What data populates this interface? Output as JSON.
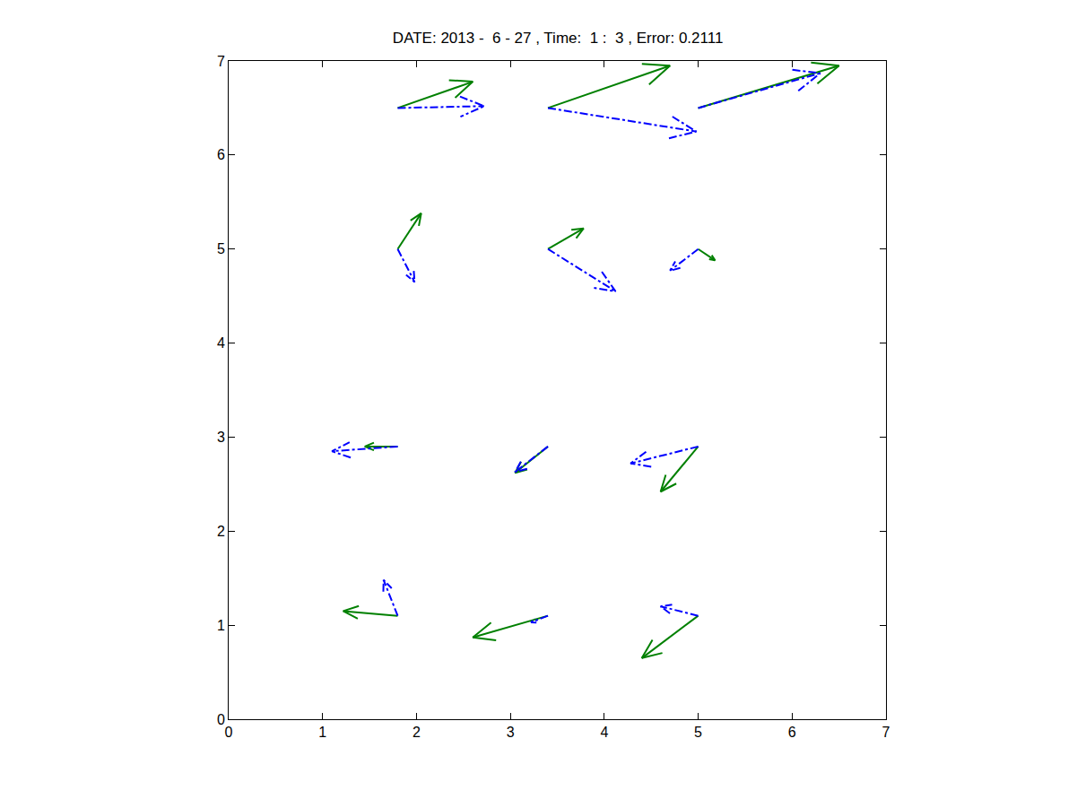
{
  "chart_data": {
    "type": "quiver",
    "title": "DATE: 2013 -  6 - 27 , Time:  1 :  3 , Error: 0.2111",
    "x": [
      1.8,
      3.4,
      5.0,
      1.8,
      3.4,
      5.0,
      1.8,
      3.4,
      5.0,
      1.8,
      3.4,
      5.0
    ],
    "y": [
      6.5,
      6.5,
      6.5,
      5.0,
      5.0,
      5.0,
      2.9,
      2.9,
      2.9,
      1.1,
      1.1,
      1.1
    ],
    "series": [
      {
        "color": "#008000",
        "line_style": "solid",
        "u": [
          0.8,
          1.3,
          1.5,
          0.25,
          0.38,
          0.18,
          -0.35,
          -0.35,
          -0.4,
          -0.58,
          -0.8,
          -0.6
        ],
        "v": [
          0.28,
          0.45,
          0.45,
          0.38,
          0.22,
          -0.12,
          0.0,
          -0.28,
          -0.48,
          0.05,
          -0.23,
          -0.45
        ]
      },
      {
        "color": "#0000ff",
        "line_style": "dashdot",
        "u": [
          0.92,
          1.58,
          1.3,
          0.18,
          0.72,
          -0.3,
          -0.7,
          -0.35,
          -0.72,
          -0.15,
          -0.18,
          -0.4
        ],
        "v": [
          0.02,
          -0.25,
          0.37,
          -0.35,
          -0.45,
          -0.23,
          -0.05,
          -0.27,
          -0.18,
          0.38,
          -0.07,
          0.1
        ]
      }
    ],
    "xlim": [
      0,
      7
    ],
    "ylim": [
      0,
      7
    ],
    "xticks": [
      0,
      1,
      2,
      3,
      4,
      5,
      6,
      7
    ],
    "yticks": [
      0,
      1,
      2,
      3,
      4,
      5,
      6,
      7
    ],
    "grid": false
  }
}
